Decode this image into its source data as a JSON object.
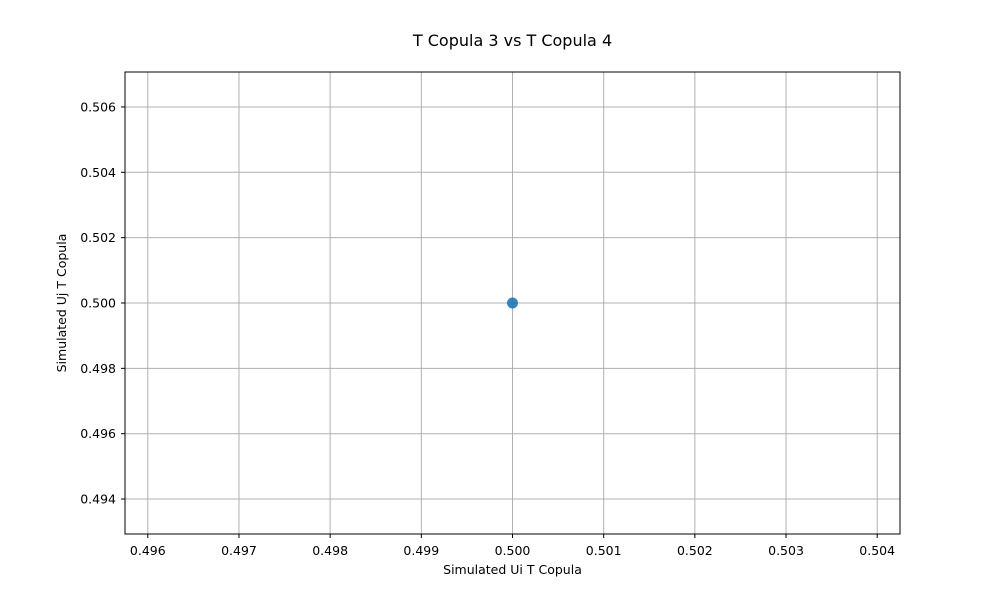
{
  "chart_data": {
    "type": "scatter",
    "title": "T Copula 3 vs T Copula 4",
    "xlabel": "Simulated Ui T Copula",
    "ylabel": "Simulated Uj T Copula",
    "xlim": [
      0.49575,
      0.50425
    ],
    "ylim": [
      0.49293,
      0.50707
    ],
    "xticks": [
      0.496,
      0.497,
      0.498,
      0.499,
      0.5,
      0.501,
      0.502,
      0.503,
      0.504
    ],
    "xtick_labels": [
      "0.496",
      "0.497",
      "0.498",
      "0.499",
      "0.500",
      "0.501",
      "0.502",
      "0.503",
      "0.504"
    ],
    "yticks": [
      0.494,
      0.496,
      0.498,
      0.5,
      0.502,
      0.504,
      0.506
    ],
    "ytick_labels": [
      "0.494",
      "0.496",
      "0.498",
      "0.500",
      "0.502",
      "0.504",
      "0.506"
    ],
    "grid": true,
    "legend": "none",
    "series": [
      {
        "color": "#1f77b4",
        "x": [
          0.5
        ],
        "y": [
          0.5
        ]
      }
    ]
  }
}
